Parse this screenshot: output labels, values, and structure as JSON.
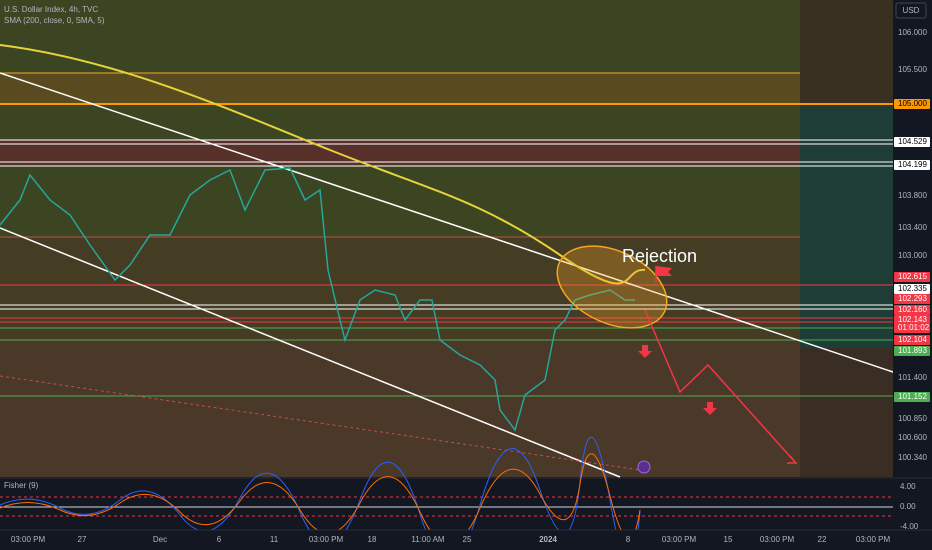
{
  "header": {
    "symbol": "U.S. Dollar Index, 4h, TVC",
    "indicator": "SMA (200, close, 0, SMA, 5)",
    "currency": "USD"
  },
  "annotation": "Rejection",
  "oscillator": {
    "name": "Fisher (9)",
    "axis_labels": [
      "4.00",
      "0.00",
      "-4.00"
    ]
  },
  "price_axis": [
    "106.000",
    "105.500",
    "105.000",
    "104.529",
    "104.199",
    "103.800",
    "103.400",
    "103.000",
    "102.615",
    "102.335",
    "102.293",
    "102.160",
    "102.143",
    "01:01:02",
    "102.104",
    "101.893",
    "101.400",
    "101.152",
    "100.850",
    "100.600",
    "100.340"
  ],
  "time_axis": [
    "03:00 PM",
    "27",
    "Dec",
    "6",
    "11",
    "03:00 PM",
    "18",
    "11:00 AM",
    "25",
    "2024",
    "8",
    "03:00 PM",
    "15",
    "03:00 PM",
    "22",
    "03:00 PM"
  ]
}
